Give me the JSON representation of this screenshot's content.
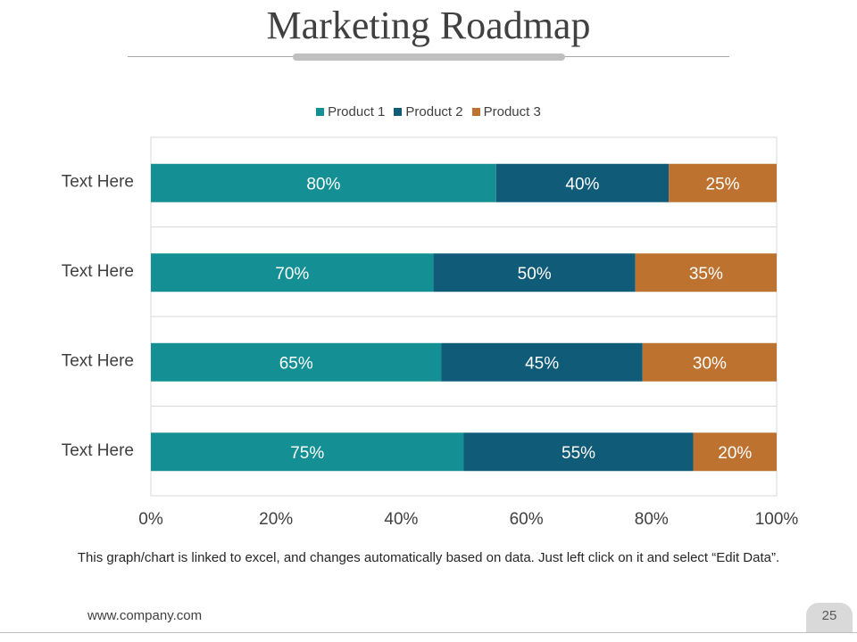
{
  "slide": {
    "title": "Marketing Roadmap",
    "caption": "This graph/chart is linked to excel, and changes automatically based on data. Just left click on it and select “Edit Data”.",
    "footer_url": "www.company.com",
    "page_number": "25"
  },
  "colors": {
    "product1": "#148F94",
    "product2": "#0F5B78",
    "product3": "#BE7230"
  },
  "chart_data": {
    "type": "bar",
    "orientation": "horizontal",
    "stacked": "percent",
    "categories": [
      "Text Here",
      "Text Here",
      "Text Here",
      "Text Here"
    ],
    "series": [
      {
        "name": "Product 1",
        "values": [
          80,
          70,
          65,
          75
        ],
        "labels": [
          "80%",
          "70%",
          "65%",
          "75%"
        ]
      },
      {
        "name": "Product 2",
        "values": [
          40,
          50,
          45,
          55
        ],
        "labels": [
          "40%",
          "50%",
          "45%",
          "55%"
        ]
      },
      {
        "name": "Product 3",
        "values": [
          25,
          35,
          30,
          20
        ],
        "labels": [
          "25%",
          "35%",
          "30%",
          "20%"
        ]
      }
    ],
    "xticks": [
      "0%",
      "20%",
      "40%",
      "60%",
      "80%",
      "100%"
    ],
    "xlim": [
      0,
      100
    ],
    "legend_position": "top",
    "grid": "horizontal"
  }
}
